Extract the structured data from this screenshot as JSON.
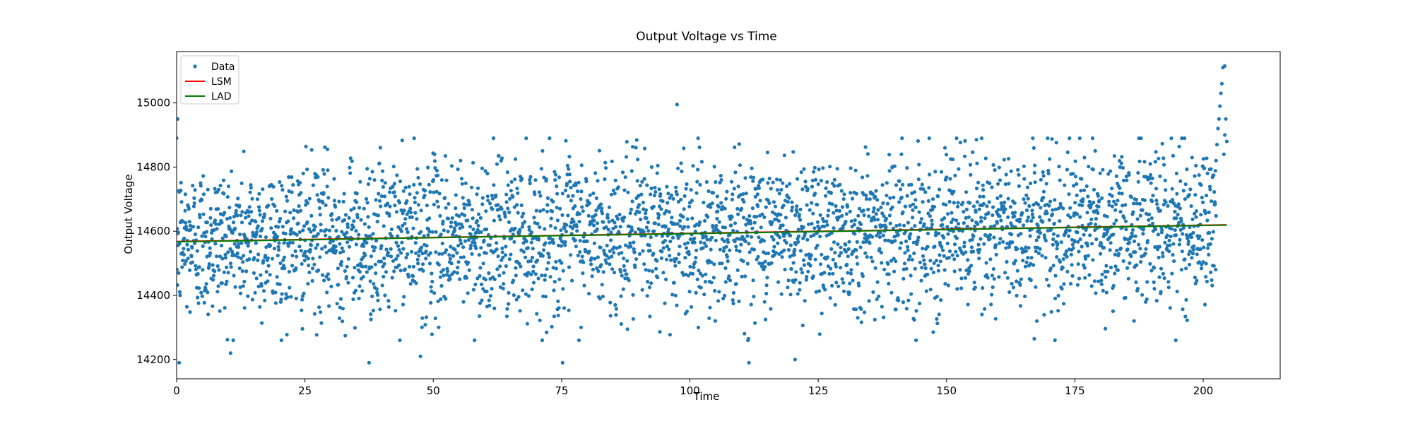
{
  "chart_data": {
    "type": "scatter",
    "title": "Output Voltage vs Time",
    "xlabel": "Time",
    "ylabel": "Output Voltage",
    "xlim": [
      0,
      215
    ],
    "ylim": [
      14140,
      15160
    ],
    "xticks": [
      0,
      25,
      50,
      75,
      100,
      125,
      150,
      175,
      200
    ],
    "yticks": [
      14200,
      14400,
      14600,
      14800,
      15000
    ],
    "grid": false,
    "legend_position": "top-left",
    "series": [
      {
        "name": "Data",
        "kind": "scatter",
        "color": "#1f77b4",
        "x_range": [
          0,
          204.6
        ],
        "center_line": {
          "start": 14568,
          "end": 14620
        },
        "spread_sd": 120,
        "count": 3600,
        "tail_start": 202.5,
        "tail_values": [
          14820,
          14870,
          14920,
          14950,
          14990,
          15030,
          15060,
          15110,
          14840,
          14900,
          14950,
          14880
        ],
        "notable_points": [
          {
            "x": 0.2,
            "y": 14950
          },
          {
            "x": 0.5,
            "y": 14190
          },
          {
            "x": 10.5,
            "y": 14220
          },
          {
            "x": 37.5,
            "y": 14190
          },
          {
            "x": 47.5,
            "y": 14210
          },
          {
            "x": 75.2,
            "y": 14190
          },
          {
            "x": 97.5,
            "y": 14995
          },
          {
            "x": 111.5,
            "y": 14190
          },
          {
            "x": 120.5,
            "y": 14200
          },
          {
            "x": 204.2,
            "y": 15115
          }
        ]
      },
      {
        "name": "LSM",
        "kind": "line",
        "color": "#ff0000",
        "x": [
          0,
          204.6
        ],
        "y": [
          14568,
          14620
        ]
      },
      {
        "name": "LAD",
        "kind": "line",
        "color": "#008000",
        "x": [
          0,
          204.6
        ],
        "y": [
          14567,
          14619
        ]
      }
    ]
  }
}
